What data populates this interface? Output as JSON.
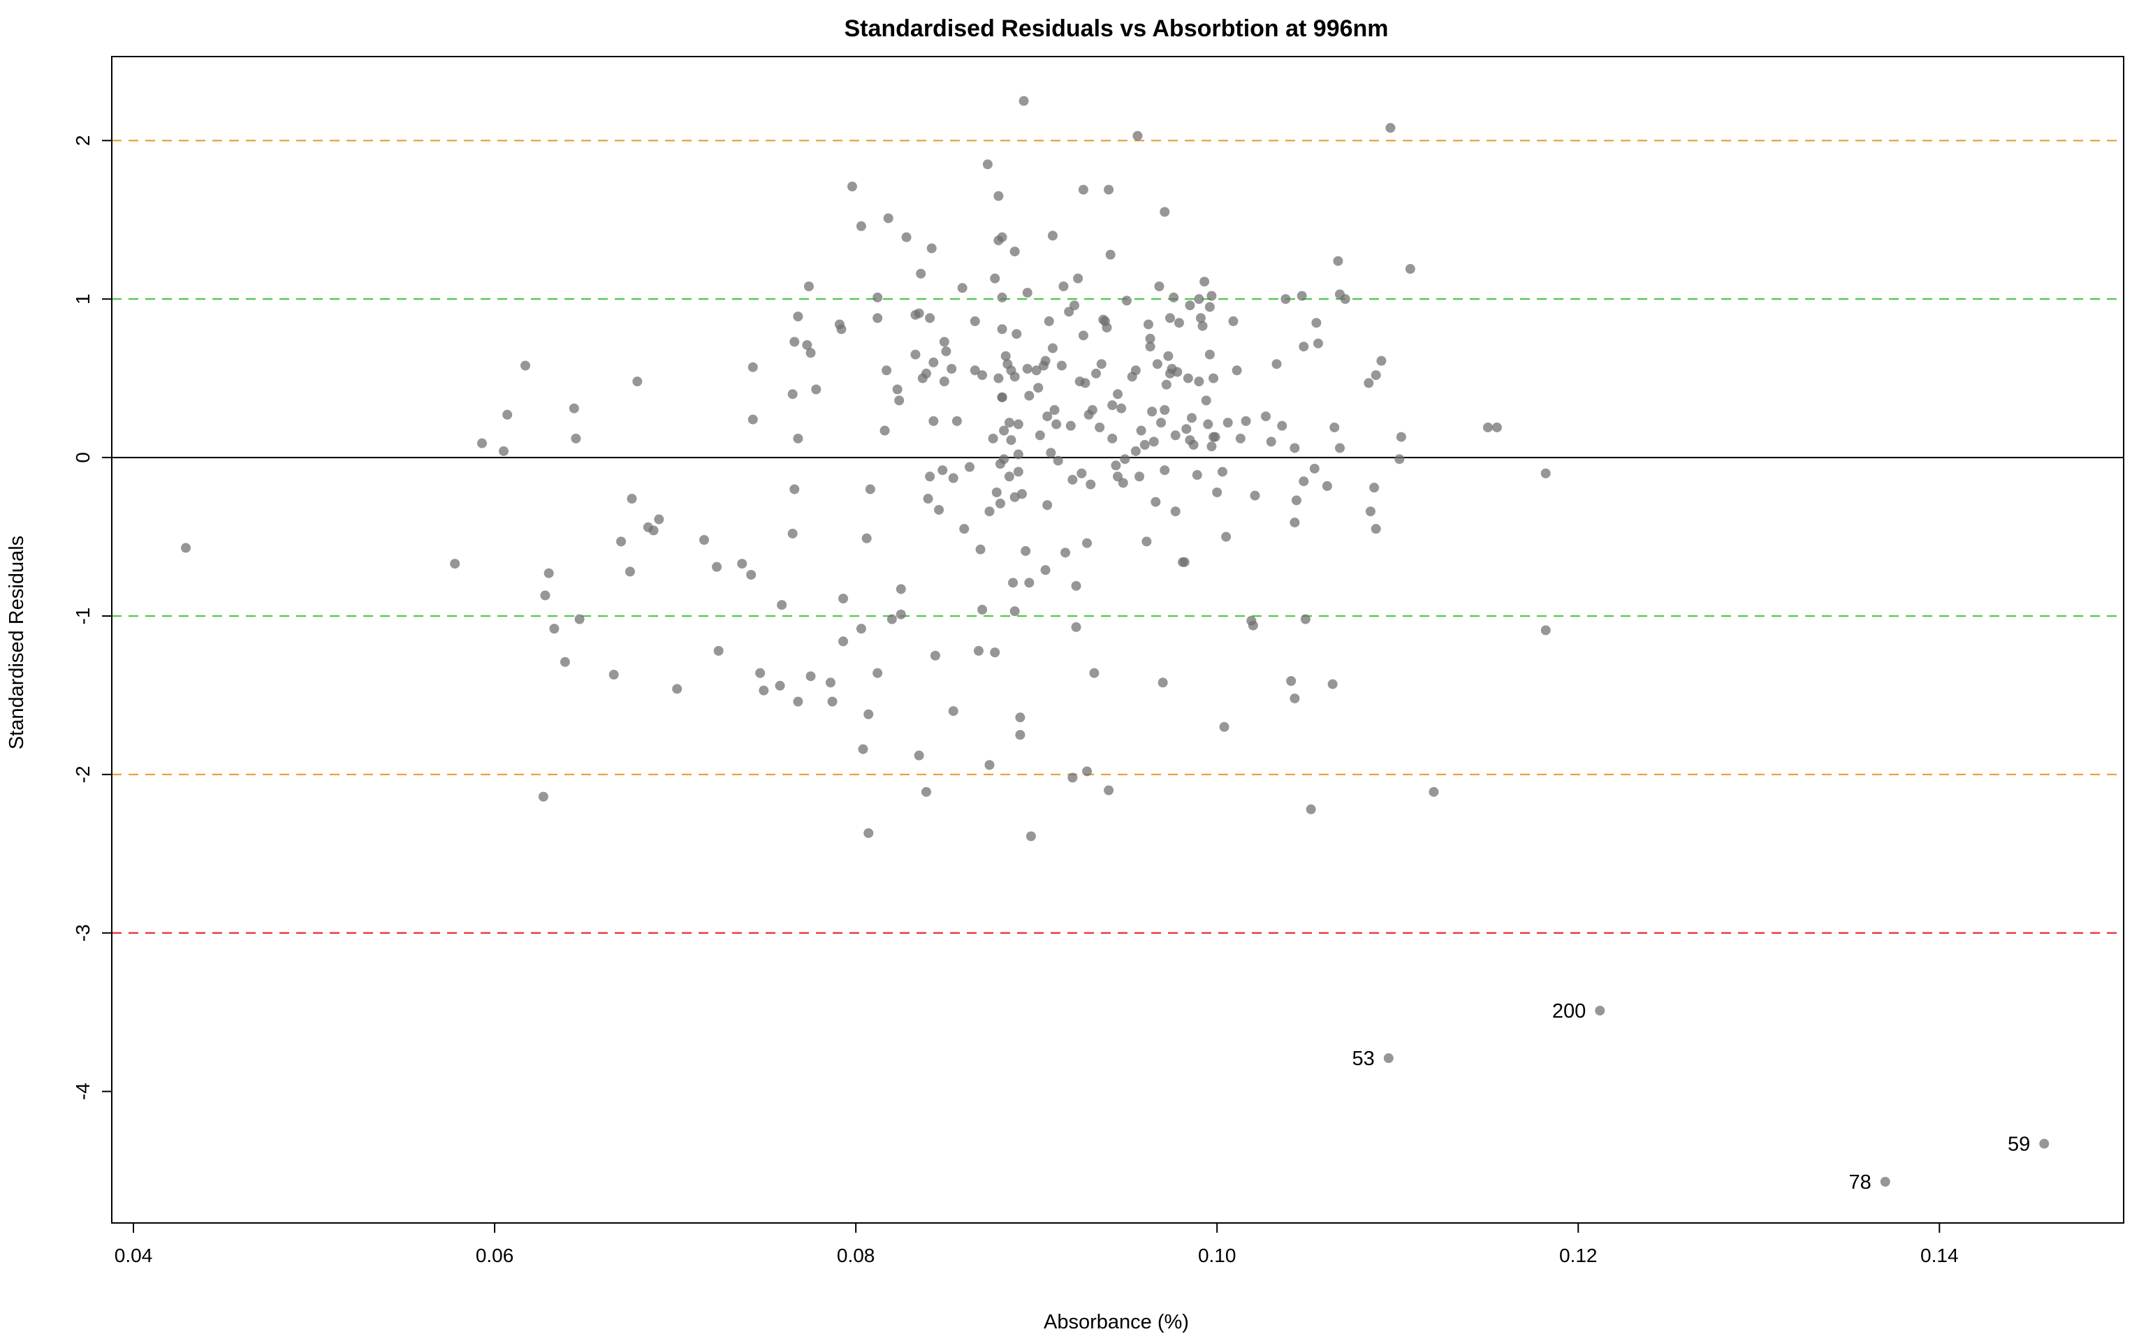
{
  "chart_data": {
    "type": "scatter",
    "title": "Standardised Residuals vs Absorbtion at 996nm",
    "xlabel": "Absorbance (%)",
    "ylabel": "Standardised Residuals",
    "xlim": [
      0.0388,
      0.1502
    ],
    "ylim": [
      -4.83,
      2.53
    ],
    "xticks": [
      0.04,
      0.06,
      0.08,
      0.1,
      0.12,
      0.14
    ],
    "xtick_labels": [
      "0.04",
      "0.06",
      "0.08",
      "0.10",
      "0.12",
      "0.14"
    ],
    "yticks": [
      2,
      1,
      0,
      -1,
      -2,
      -3,
      -4
    ],
    "ytick_labels": [
      "2",
      "1",
      "0",
      "-1",
      "-2",
      "-3",
      "-4"
    ],
    "grid": false,
    "reference_lines": [
      {
        "y": 2,
        "color": "#E8A33D",
        "style": "dashed"
      },
      {
        "y": 1,
        "color": "#4DC94D",
        "style": "dashed"
      },
      {
        "y": 0,
        "color": "#000000",
        "style": "solid"
      },
      {
        "y": -1,
        "color": "#4DC94D",
        "style": "dashed"
      },
      {
        "y": -2,
        "color": "#E8A33D",
        "style": "dashed"
      },
      {
        "y": -3,
        "color": "#E0303A",
        "style": "dashed"
      }
    ],
    "point_color": "#6E6E6E",
    "labeled_points": [
      {
        "label": "200",
        "x": 0.1212,
        "y": -3.49
      },
      {
        "label": "53",
        "x": 0.1095,
        "y": -3.79
      },
      {
        "label": "59",
        "x": 0.1458,
        "y": -4.33
      },
      {
        "label": "78",
        "x": 0.137,
        "y": -4.57
      }
    ],
    "points": [
      [
        0.0429,
        -0.57
      ],
      [
        0.0578,
        -0.67
      ],
      [
        0.0593,
        0.09
      ],
      [
        0.0605,
        0.04
      ],
      [
        0.0607,
        0.27
      ],
      [
        0.0617,
        0.58
      ],
      [
        0.0627,
        -2.14
      ],
      [
        0.0628,
        -0.87
      ],
      [
        0.063,
        -0.73
      ],
      [
        0.0633,
        -1.08
      ],
      [
        0.0639,
        -1.29
      ],
      [
        0.0644,
        0.31
      ],
      [
        0.0645,
        0.12
      ],
      [
        0.0647,
        -1.02
      ],
      [
        0.0666,
        -1.37
      ],
      [
        0.067,
        -0.53
      ],
      [
        0.0675,
        -0.72
      ],
      [
        0.0676,
        -0.26
      ],
      [
        0.0679,
        0.48
      ],
      [
        0.0685,
        -0.44
      ],
      [
        0.0688,
        -0.46
      ],
      [
        0.0691,
        -0.39
      ],
      [
        0.0701,
        -1.46
      ],
      [
        0.0716,
        -0.52
      ],
      [
        0.0723,
        -0.69
      ],
      [
        0.0724,
        -1.22
      ],
      [
        0.0737,
        -0.67
      ],
      [
        0.0742,
        -0.74
      ],
      [
        0.0743,
        0.57
      ],
      [
        0.0743,
        0.24
      ],
      [
        0.0747,
        -1.36
      ],
      [
        0.0749,
        -1.47
      ],
      [
        0.0758,
        -1.44
      ],
      [
        0.0759,
        -0.93
      ],
      [
        0.0765,
        -0.48
      ],
      [
        0.0765,
        0.4
      ],
      [
        0.0766,
        -0.2
      ],
      [
        0.0766,
        0.73
      ],
      [
        0.0768,
        0.89
      ],
      [
        0.0768,
        0.12
      ],
      [
        0.0768,
        -1.54
      ],
      [
        0.0773,
        0.71
      ],
      [
        0.0774,
        1.08
      ],
      [
        0.0775,
        0.66
      ],
      [
        0.0775,
        -1.38
      ],
      [
        0.0778,
        0.43
      ],
      [
        0.0786,
        -1.42
      ],
      [
        0.0787,
        -1.54
      ],
      [
        0.0791,
        0.84
      ],
      [
        0.0792,
        0.81
      ],
      [
        0.0793,
        -1.16
      ],
      [
        0.0793,
        -0.89
      ],
      [
        0.0798,
        1.71
      ],
      [
        0.0803,
        1.46
      ],
      [
        0.0803,
        -1.08
      ],
      [
        0.0804,
        -1.84
      ],
      [
        0.0806,
        -0.51
      ],
      [
        0.0807,
        -1.62
      ],
      [
        0.0807,
        -2.37
      ],
      [
        0.0808,
        -0.2
      ],
      [
        0.0812,
        1.01
      ],
      [
        0.0812,
        0.88
      ],
      [
        0.0812,
        -1.36
      ],
      [
        0.0816,
        0.17
      ],
      [
        0.0817,
        0.55
      ],
      [
        0.0818,
        1.51
      ],
      [
        0.082,
        -1.02
      ],
      [
        0.0823,
        0.43
      ],
      [
        0.0824,
        0.36
      ],
      [
        0.0825,
        -0.99
      ],
      [
        0.0825,
        -0.83
      ],
      [
        0.0828,
        1.39
      ],
      [
        0.0833,
        0.9
      ],
      [
        0.0833,
        0.65
      ],
      [
        0.0835,
        0.91
      ],
      [
        0.0835,
        -1.88
      ],
      [
        0.0836,
        1.16
      ],
      [
        0.0837,
        0.5
      ],
      [
        0.0839,
        -2.11
      ],
      [
        0.0839,
        0.53
      ],
      [
        0.084,
        -0.26
      ],
      [
        0.0841,
        0.88
      ],
      [
        0.0841,
        -0.12
      ],
      [
        0.0842,
        1.32
      ],
      [
        0.0843,
        0.6
      ],
      [
        0.0843,
        0.23
      ],
      [
        0.0844,
        -1.25
      ],
      [
        0.0846,
        -0.33
      ],
      [
        0.0848,
        -0.08
      ],
      [
        0.0849,
        0.73
      ],
      [
        0.0849,
        0.48
      ],
      [
        0.085,
        0.67
      ],
      [
        0.0853,
        0.56
      ],
      [
        0.0854,
        -1.6
      ],
      [
        0.0854,
        -0.13
      ],
      [
        0.0856,
        0.23
      ],
      [
        0.0859,
        1.07
      ],
      [
        0.086,
        -0.45
      ],
      [
        0.0863,
        -0.06
      ],
      [
        0.0866,
        0.86
      ],
      [
        0.0866,
        0.55
      ],
      [
        0.0868,
        -1.22
      ],
      [
        0.0869,
        -0.58
      ],
      [
        0.087,
        0.52
      ],
      [
        0.087,
        -0.96
      ],
      [
        0.0873,
        1.85
      ],
      [
        0.0874,
        -1.94
      ],
      [
        0.0874,
        -0.34
      ],
      [
        0.0876,
        0.12
      ],
      [
        0.0877,
        1.13
      ],
      [
        0.0877,
        -1.23
      ],
      [
        0.0878,
        -0.22
      ],
      [
        0.0879,
        1.65
      ],
      [
        0.0879,
        0.5
      ],
      [
        0.0879,
        1.37
      ],
      [
        0.088,
        -0.04
      ],
      [
        0.088,
        -0.29
      ],
      [
        0.0881,
        1.39
      ],
      [
        0.0881,
        1.01
      ],
      [
        0.0881,
        0.81
      ],
      [
        0.0881,
        0.38
      ],
      [
        0.0881,
        0.38
      ],
      [
        0.0882,
        0.17
      ],
      [
        0.0882,
        -0.01
      ],
      [
        0.0883,
        0.64
      ],
      [
        0.0884,
        0.59
      ],
      [
        0.0885,
        0.22
      ],
      [
        0.0885,
        -0.12
      ],
      [
        0.0886,
        0.11
      ],
      [
        0.0886,
        0.55
      ],
      [
        0.0887,
        -0.79
      ],
      [
        0.0888,
        1.3
      ],
      [
        0.0888,
        0.51
      ],
      [
        0.0888,
        -0.25
      ],
      [
        0.0888,
        -0.97
      ],
      [
        0.0889,
        0.78
      ],
      [
        0.089,
        0.21
      ],
      [
        0.089,
        0.02
      ],
      [
        0.089,
        -0.09
      ],
      [
        0.0891,
        -1.64
      ],
      [
        0.0891,
        -1.75
      ],
      [
        0.0892,
        -0.23
      ],
      [
        0.0893,
        2.25
      ],
      [
        0.0894,
        -0.59
      ],
      [
        0.0895,
        1.04
      ],
      [
        0.0895,
        0.56
      ],
      [
        0.0896,
        0.39
      ],
      [
        0.0896,
        -0.79
      ],
      [
        0.0897,
        -2.39
      ],
      [
        0.09,
        0.55
      ],
      [
        0.0901,
        0.44
      ],
      [
        0.0902,
        0.14
      ],
      [
        0.0904,
        0.58
      ],
      [
        0.0905,
        0.61
      ],
      [
        0.0905,
        -0.71
      ],
      [
        0.0906,
        -0.3
      ],
      [
        0.0906,
        0.26
      ],
      [
        0.0907,
        0.86
      ],
      [
        0.0908,
        0.03
      ],
      [
        0.0909,
        1.4
      ],
      [
        0.0909,
        0.69
      ],
      [
        0.091,
        0.3
      ],
      [
        0.0911,
        0.21
      ],
      [
        0.0912,
        -0.02
      ],
      [
        0.0914,
        0.58
      ],
      [
        0.0915,
        1.08
      ],
      [
        0.0916,
        -0.6
      ],
      [
        0.0918,
        0.92
      ],
      [
        0.0919,
        0.2
      ],
      [
        0.092,
        -0.14
      ],
      [
        0.092,
        -2.02
      ],
      [
        0.0921,
        0.96
      ],
      [
        0.0922,
        -0.81
      ],
      [
        0.0922,
        -1.07
      ],
      [
        0.0923,
        1.13
      ],
      [
        0.0924,
        0.48
      ],
      [
        0.0925,
        -0.1
      ],
      [
        0.0926,
        1.69
      ],
      [
        0.0926,
        0.77
      ],
      [
        0.0927,
        0.47
      ],
      [
        0.0928,
        -0.54
      ],
      [
        0.0928,
        -1.98
      ],
      [
        0.0929,
        0.27
      ],
      [
        0.093,
        -0.17
      ],
      [
        0.0931,
        0.3
      ],
      [
        0.0932,
        -1.36
      ],
      [
        0.0933,
        0.53
      ],
      [
        0.0935,
        0.19
      ],
      [
        0.0936,
        0.59
      ],
      [
        0.0937,
        0.87
      ],
      [
        0.0938,
        0.86
      ],
      [
        0.0939,
        0.82
      ],
      [
        0.094,
        1.69
      ],
      [
        0.094,
        -2.1
      ],
      [
        0.0941,
        1.28
      ],
      [
        0.0942,
        0.33
      ],
      [
        0.0942,
        0.12
      ],
      [
        0.0944,
        -0.05
      ],
      [
        0.0945,
        -0.12
      ],
      [
        0.0945,
        0.4
      ],
      [
        0.0947,
        0.31
      ],
      [
        0.0948,
        -0.16
      ],
      [
        0.0949,
        -0.01
      ],
      [
        0.095,
        0.99
      ],
      [
        0.0953,
        0.51
      ],
      [
        0.0955,
        0.55
      ],
      [
        0.0955,
        0.04
      ],
      [
        0.0956,
        2.03
      ],
      [
        0.0957,
        -0.12
      ],
      [
        0.0958,
        0.17
      ],
      [
        0.096,
        0.08
      ],
      [
        0.0961,
        -0.53
      ],
      [
        0.0962,
        0.84
      ],
      [
        0.0963,
        0.75
      ],
      [
        0.0963,
        0.7
      ],
      [
        0.0964,
        0.29
      ],
      [
        0.0965,
        0.1
      ],
      [
        0.0966,
        -0.28
      ],
      [
        0.0967,
        0.59
      ],
      [
        0.0968,
        1.08
      ],
      [
        0.0969,
        0.22
      ],
      [
        0.097,
        -1.42
      ],
      [
        0.0971,
        0.3
      ],
      [
        0.0971,
        1.55
      ],
      [
        0.0971,
        -0.08
      ],
      [
        0.0972,
        0.46
      ],
      [
        0.0973,
        0.64
      ],
      [
        0.0974,
        0.88
      ],
      [
        0.0974,
        0.53
      ],
      [
        0.0975,
        0.56
      ],
      [
        0.0976,
        1.01
      ],
      [
        0.0977,
        0.14
      ],
      [
        0.0977,
        -0.34
      ],
      [
        0.0978,
        0.54
      ],
      [
        0.0979,
        0.85
      ],
      [
        0.0981,
        -0.66
      ],
      [
        0.0982,
        -0.66
      ],
      [
        0.0983,
        0.18
      ],
      [
        0.0984,
        0.5
      ],
      [
        0.0985,
        0.96
      ],
      [
        0.0985,
        0.11
      ],
      [
        0.0986,
        0.25
      ],
      [
        0.0987,
        0.08
      ],
      [
        0.0989,
        -0.11
      ],
      [
        0.099,
        0.48
      ],
      [
        0.099,
        1.0
      ],
      [
        0.0991,
        0.88
      ],
      [
        0.0992,
        0.83
      ],
      [
        0.0993,
        1.11
      ],
      [
        0.0994,
        0.36
      ],
      [
        0.0995,
        0.21
      ],
      [
        0.0996,
        0.95
      ],
      [
        0.0996,
        0.65
      ],
      [
        0.0997,
        0.07
      ],
      [
        0.0997,
        1.02
      ],
      [
        0.0998,
        0.5
      ],
      [
        0.0998,
        0.13
      ],
      [
        0.0999,
        0.13
      ],
      [
        0.1,
        -0.22
      ],
      [
        0.1003,
        -0.09
      ],
      [
        0.1004,
        -1.7
      ],
      [
        0.1005,
        -0.5
      ],
      [
        0.1006,
        0.22
      ],
      [
        0.1009,
        0.86
      ],
      [
        0.1011,
        0.55
      ],
      [
        0.1013,
        0.12
      ],
      [
        0.1016,
        0.23
      ],
      [
        0.1019,
        -1.03
      ],
      [
        0.102,
        -1.06
      ],
      [
        0.1021,
        -0.24
      ],
      [
        0.1027,
        0.26
      ],
      [
        0.103,
        0.1
      ],
      [
        0.1033,
        0.59
      ],
      [
        0.1036,
        0.2
      ],
      [
        0.1038,
        1.0
      ],
      [
        0.1041,
        -1.41
      ],
      [
        0.1043,
        0.06
      ],
      [
        0.1043,
        -0.41
      ],
      [
        0.1043,
        -1.52
      ],
      [
        0.1044,
        -0.27
      ],
      [
        0.1047,
        1.02
      ],
      [
        0.1048,
        -0.15
      ],
      [
        0.1048,
        0.7
      ],
      [
        0.1049,
        -1.02
      ],
      [
        0.1052,
        -2.22
      ],
      [
        0.1054,
        -0.07
      ],
      [
        0.1055,
        0.85
      ],
      [
        0.1056,
        0.72
      ],
      [
        0.1061,
        -0.18
      ],
      [
        0.1064,
        -1.43
      ],
      [
        0.1065,
        0.19
      ],
      [
        0.1067,
        1.24
      ],
      [
        0.1068,
        0.06
      ],
      [
        0.1068,
        1.03
      ],
      [
        0.1071,
        1.0
      ],
      [
        0.1084,
        0.47
      ],
      [
        0.1085,
        -0.34
      ],
      [
        0.1087,
        -0.19
      ],
      [
        0.1088,
        0.52
      ],
      [
        0.1088,
        -0.45
      ],
      [
        0.1091,
        0.61
      ],
      [
        0.1096,
        2.08
      ],
      [
        0.1101,
        -0.01
      ],
      [
        0.1102,
        0.13
      ],
      [
        0.1107,
        1.19
      ],
      [
        0.112,
        -2.11
      ],
      [
        0.115,
        0.19
      ],
      [
        0.1155,
        0.19
      ],
      [
        0.1182,
        -0.1
      ],
      [
        0.1182,
        -1.09
      ],
      [
        0.1212,
        -3.49
      ],
      [
        0.1095,
        -3.79
      ],
      [
        0.1458,
        -4.33
      ],
      [
        0.137,
        -4.57
      ]
    ]
  }
}
